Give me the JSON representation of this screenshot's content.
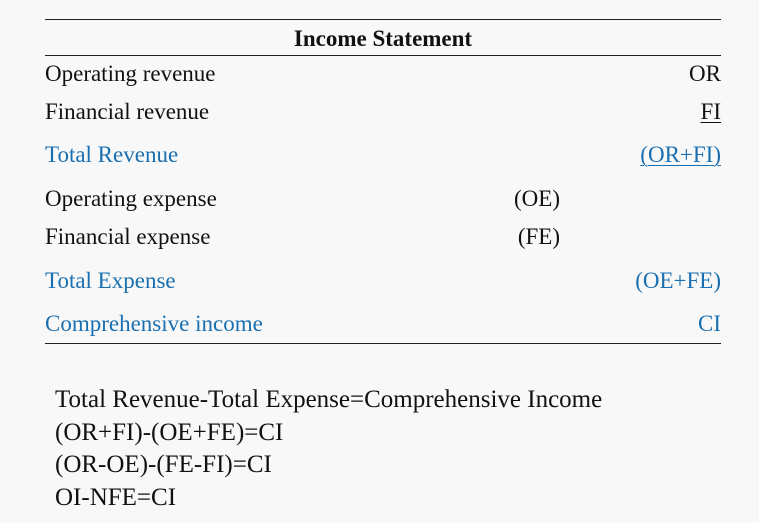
{
  "statement": {
    "title": "Income Statement",
    "rows": [
      {
        "label": "Operating revenue",
        "mid": "",
        "right": "OR"
      },
      {
        "label": "Financial revenue",
        "mid": "",
        "right": "FI"
      },
      {
        "label": "Total Revenue",
        "mid": "",
        "right": "(OR+FI)"
      },
      {
        "label": "Operating expense",
        "mid": "(OE)",
        "right": ""
      },
      {
        "label": "Financial expense",
        "mid": "(FE)",
        "right": ""
      },
      {
        "label": "Total Expense",
        "mid": "",
        "right": "(OE+FE)"
      },
      {
        "label": "Comprehensive income",
        "mid": "",
        "right": "CI"
      }
    ]
  },
  "formulas": [
    "Total Revenue-Total Expense=Comprehensive Income",
    "(OR+FI)-(OE+FE)=CI",
    "(OR-OE)-(FE-FI)=CI",
    "OI-NFE=CI"
  ],
  "colors": {
    "accent": "#1a6fb0",
    "text": "#111111",
    "background": "#f8f8f8"
  }
}
